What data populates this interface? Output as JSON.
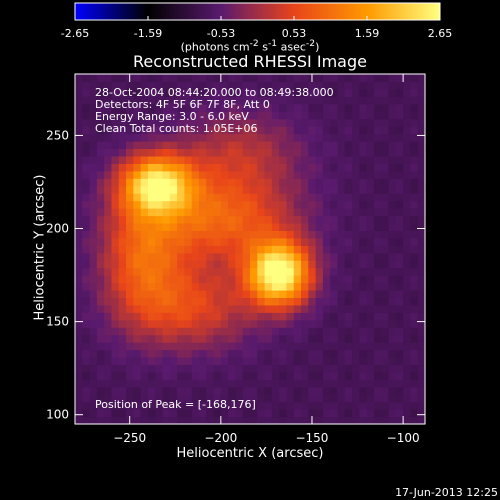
{
  "chart_data": {
    "type": "heatmap",
    "title": "Reconstructed RHESSI Image",
    "xlabel": "Heliocentric X (arcsec)",
    "ylabel": "Heliocentric Y (arcsec)",
    "xlim": [
      -280,
      -88
    ],
    "ylim": [
      95,
      283
    ],
    "xticks": [
      -250,
      -200,
      -150,
      -100
    ],
    "yticks": [
      100,
      150,
      200,
      250
    ],
    "colorbar": {
      "range": [
        -2.65,
        2.65
      ],
      "ticks": [
        -2.65,
        -1.59,
        -0.53,
        0.53,
        1.59,
        2.65
      ],
      "tick_labels": [
        "-2.65",
        "-1.59",
        "-0.53",
        "0.53",
        "1.59",
        "2.65"
      ],
      "unit_text": "(photons cm^-2 s^-1 asec^-2)",
      "colors": [
        "#0000ff",
        "#000000",
        "#5a1a6e",
        "#e8441a",
        "#ff9900",
        "#ffff80"
      ]
    },
    "info_lines": [
      "28-Oct-2004 08:44:20.000 to 08:49:38.000",
      "Detectors: 4F 5F 6F 7F 8F, Att 0",
      "Energy Range: 3.0 - 6.0 keV",
      "Clean     Total counts: 1.05E+06"
    ],
    "peak_text": "Position of Peak = [-168,176]",
    "peak_position": [
      -168,
      176
    ],
    "sources": [
      {
        "x": -168,
        "y": 176,
        "sx": 12,
        "sy": 12,
        "amp": 3.6
      },
      {
        "x": -235,
        "y": 224,
        "sx": 14,
        "sy": 11,
        "amp": 2.9
      },
      {
        "x": -200,
        "y": 205,
        "sx": 28,
        "sy": 16,
        "amp": 1.6
      },
      {
        "x": -243,
        "y": 185,
        "sx": 16,
        "sy": 24,
        "amp": 1.5
      },
      {
        "x": -215,
        "y": 158,
        "sx": 24,
        "sy": 16,
        "amp": 1.2
      },
      {
        "x": -190,
        "y": 240,
        "sx": 24,
        "sy": 16,
        "amp": 0.9
      }
    ],
    "background_level": -0.75,
    "timestamp": "17-Jun-2013 12:25"
  }
}
